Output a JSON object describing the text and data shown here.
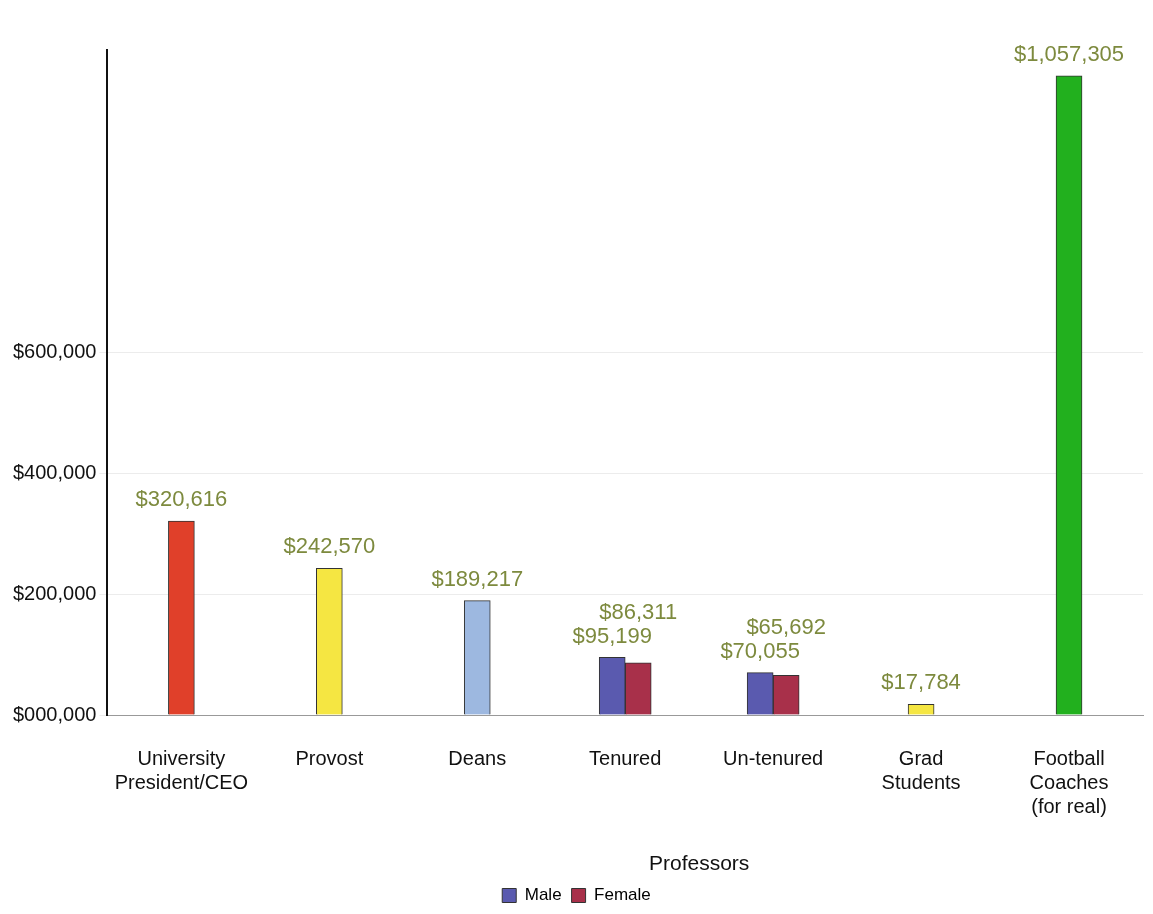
{
  "chart_data": {
    "type": "bar",
    "categories": [
      "University\nPresident/CEO",
      "Provost",
      "Deans",
      "Tenured",
      "Un-tenured",
      "Grad\nStudents",
      "Football\nCoaches\n(for real)"
    ],
    "series": [
      {
        "colors": [
          "#e0402a",
          "#f5e642",
          "#9db8e0",
          null,
          null,
          "#f5e642",
          "#22b01e"
        ],
        "values": [
          320616,
          242570,
          189217,
          null,
          null,
          17784,
          1057305
        ],
        "value_labels": [
          "$320,616",
          "$242,570",
          "$189,217",
          null,
          null,
          "$17,784",
          "$1,057,305"
        ]
      },
      {
        "name": "Male",
        "color": "#5a5aaf",
        "values": [
          null,
          null,
          null,
          95199,
          70055,
          null,
          null
        ],
        "value_labels": [
          null,
          null,
          null,
          "$95,199",
          "$70,055",
          null,
          null
        ]
      },
      {
        "name": "Female",
        "color": "#a8304a",
        "values": [
          null,
          null,
          null,
          86311,
          65692,
          null,
          null
        ],
        "value_labels": [
          null,
          null,
          null,
          "$86,311",
          "$65,692",
          null,
          null
        ]
      }
    ],
    "ylim": [
      0,
      1100000
    ],
    "yticks": [
      {
        "value": 0,
        "label": "$000,000"
      },
      {
        "value": 200000,
        "label": "$200,000"
      },
      {
        "value": 400000,
        "label": "$400,000"
      },
      {
        "value": 600000,
        "label": "$600,000"
      }
    ],
    "annotations": [
      "Professors"
    ],
    "grid": "y",
    "legend": "bottom"
  }
}
